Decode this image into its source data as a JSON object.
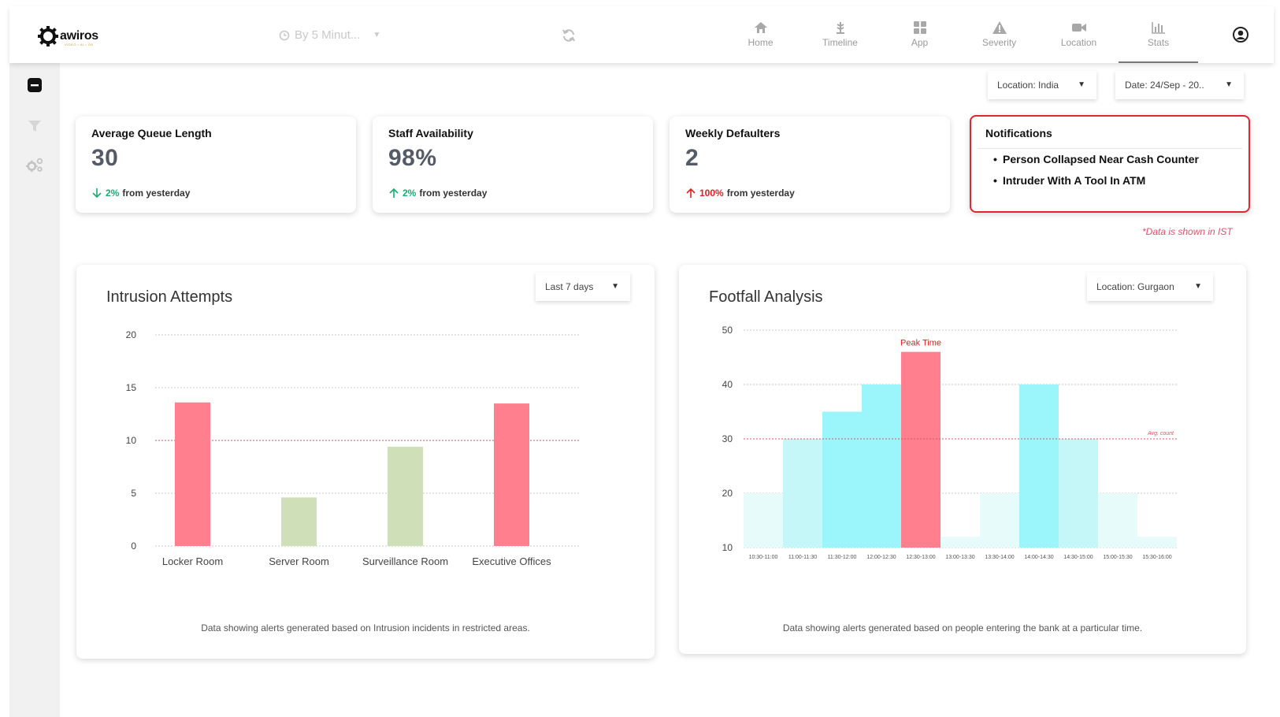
{
  "header": {
    "logo_text": "awiros",
    "logo_sub": "VIDEO • AI • OS",
    "period_select": "By 5 Minut...",
    "nav": [
      {
        "label": "Home",
        "icon": "home-icon"
      },
      {
        "label": "Timeline",
        "icon": "timeline-icon"
      },
      {
        "label": "App",
        "icon": "app-grid-icon"
      },
      {
        "label": "Severity",
        "icon": "warning-icon"
      },
      {
        "label": "Location",
        "icon": "camera-icon"
      },
      {
        "label": "Stats",
        "icon": "stats-icon",
        "active": true
      }
    ]
  },
  "sidebar": {
    "icons": [
      "collapse-icon",
      "filter-icon",
      "settings-icon"
    ]
  },
  "filters": {
    "location": "Location: India",
    "date": "Date: 24/Sep - 20.."
  },
  "kpis": [
    {
      "title": "Average Queue Length",
      "value": "30",
      "change_pct": "2%",
      "change_text": "from yesterday",
      "direction": "down",
      "color": "#1aab6f"
    },
    {
      "title": "Staff Availability",
      "value": "98%",
      "change_pct": "2%",
      "change_text": "from yesterday",
      "direction": "up",
      "color": "#1aab6f"
    },
    {
      "title": "Weekly Defaulters",
      "value": "2",
      "change_pct": "100%",
      "change_text": "from yesterday",
      "direction": "up",
      "color": "#e02020"
    }
  ],
  "notifications": {
    "title": "Notifications",
    "items": [
      "Person Collapsed Near Cash Counter",
      "Intruder With A Tool In ATM"
    ]
  },
  "ist_note": "*Data is shown in IST",
  "intrusion": {
    "title": "Intrusion Attempts",
    "range_select": "Last 7 days",
    "caption": "Data showing alerts generated based on Intrusion incidents in restricted areas."
  },
  "footfall": {
    "title": "Footfall Analysis",
    "location_select": "Location: Gurgaon",
    "caption": "Data showing alerts generated based on people entering the bank at a particular time.",
    "peak_label": "Peak Time",
    "avg_label": "Avg. count"
  },
  "chart_data": [
    {
      "type": "bar",
      "title": "Intrusion Attempts",
      "categories": [
        "Locker Room",
        "Server Room",
        "Surveillance Room",
        "Executive Offices"
      ],
      "values": [
        13.6,
        4.6,
        9.4,
        13.5
      ],
      "colors": [
        "#ff7f8e",
        "#cfe0b8",
        "#cfe0b8",
        "#ff7f8e"
      ],
      "ylim": [
        0,
        20
      ],
      "yticks": [
        0,
        5,
        10,
        15,
        20
      ],
      "reference_line": 10,
      "reference_color": "#e05060",
      "grid": true
    },
    {
      "type": "bar",
      "title": "Footfall Analysis",
      "categories": [
        "10:30-11:00",
        "11:00-11:30",
        "11:30-12:00",
        "12:00-12:30",
        "12:30-13:00",
        "13:00-13:30",
        "13:30-14:00",
        "14:00-14:30",
        "14:30-15:00",
        "15:00-15:30",
        "15:30-16:00"
      ],
      "values": [
        20,
        30,
        35,
        40,
        46,
        12,
        20,
        40,
        30,
        20,
        12
      ],
      "colors": [
        "#e7fbfb",
        "#c5f6f8",
        "#9af6fa",
        "#9af6fa",
        "#ff7f8e",
        "#e7fbfb",
        "#e7fbfb",
        "#9af6fa",
        "#c5f6f8",
        "#e7fbfb",
        "#e7fbfb"
      ],
      "ylim": [
        10,
        50
      ],
      "yticks": [
        10,
        20,
        30,
        40,
        50
      ],
      "reference_line": 30,
      "reference_color": "#e05060",
      "grid": true
    }
  ]
}
